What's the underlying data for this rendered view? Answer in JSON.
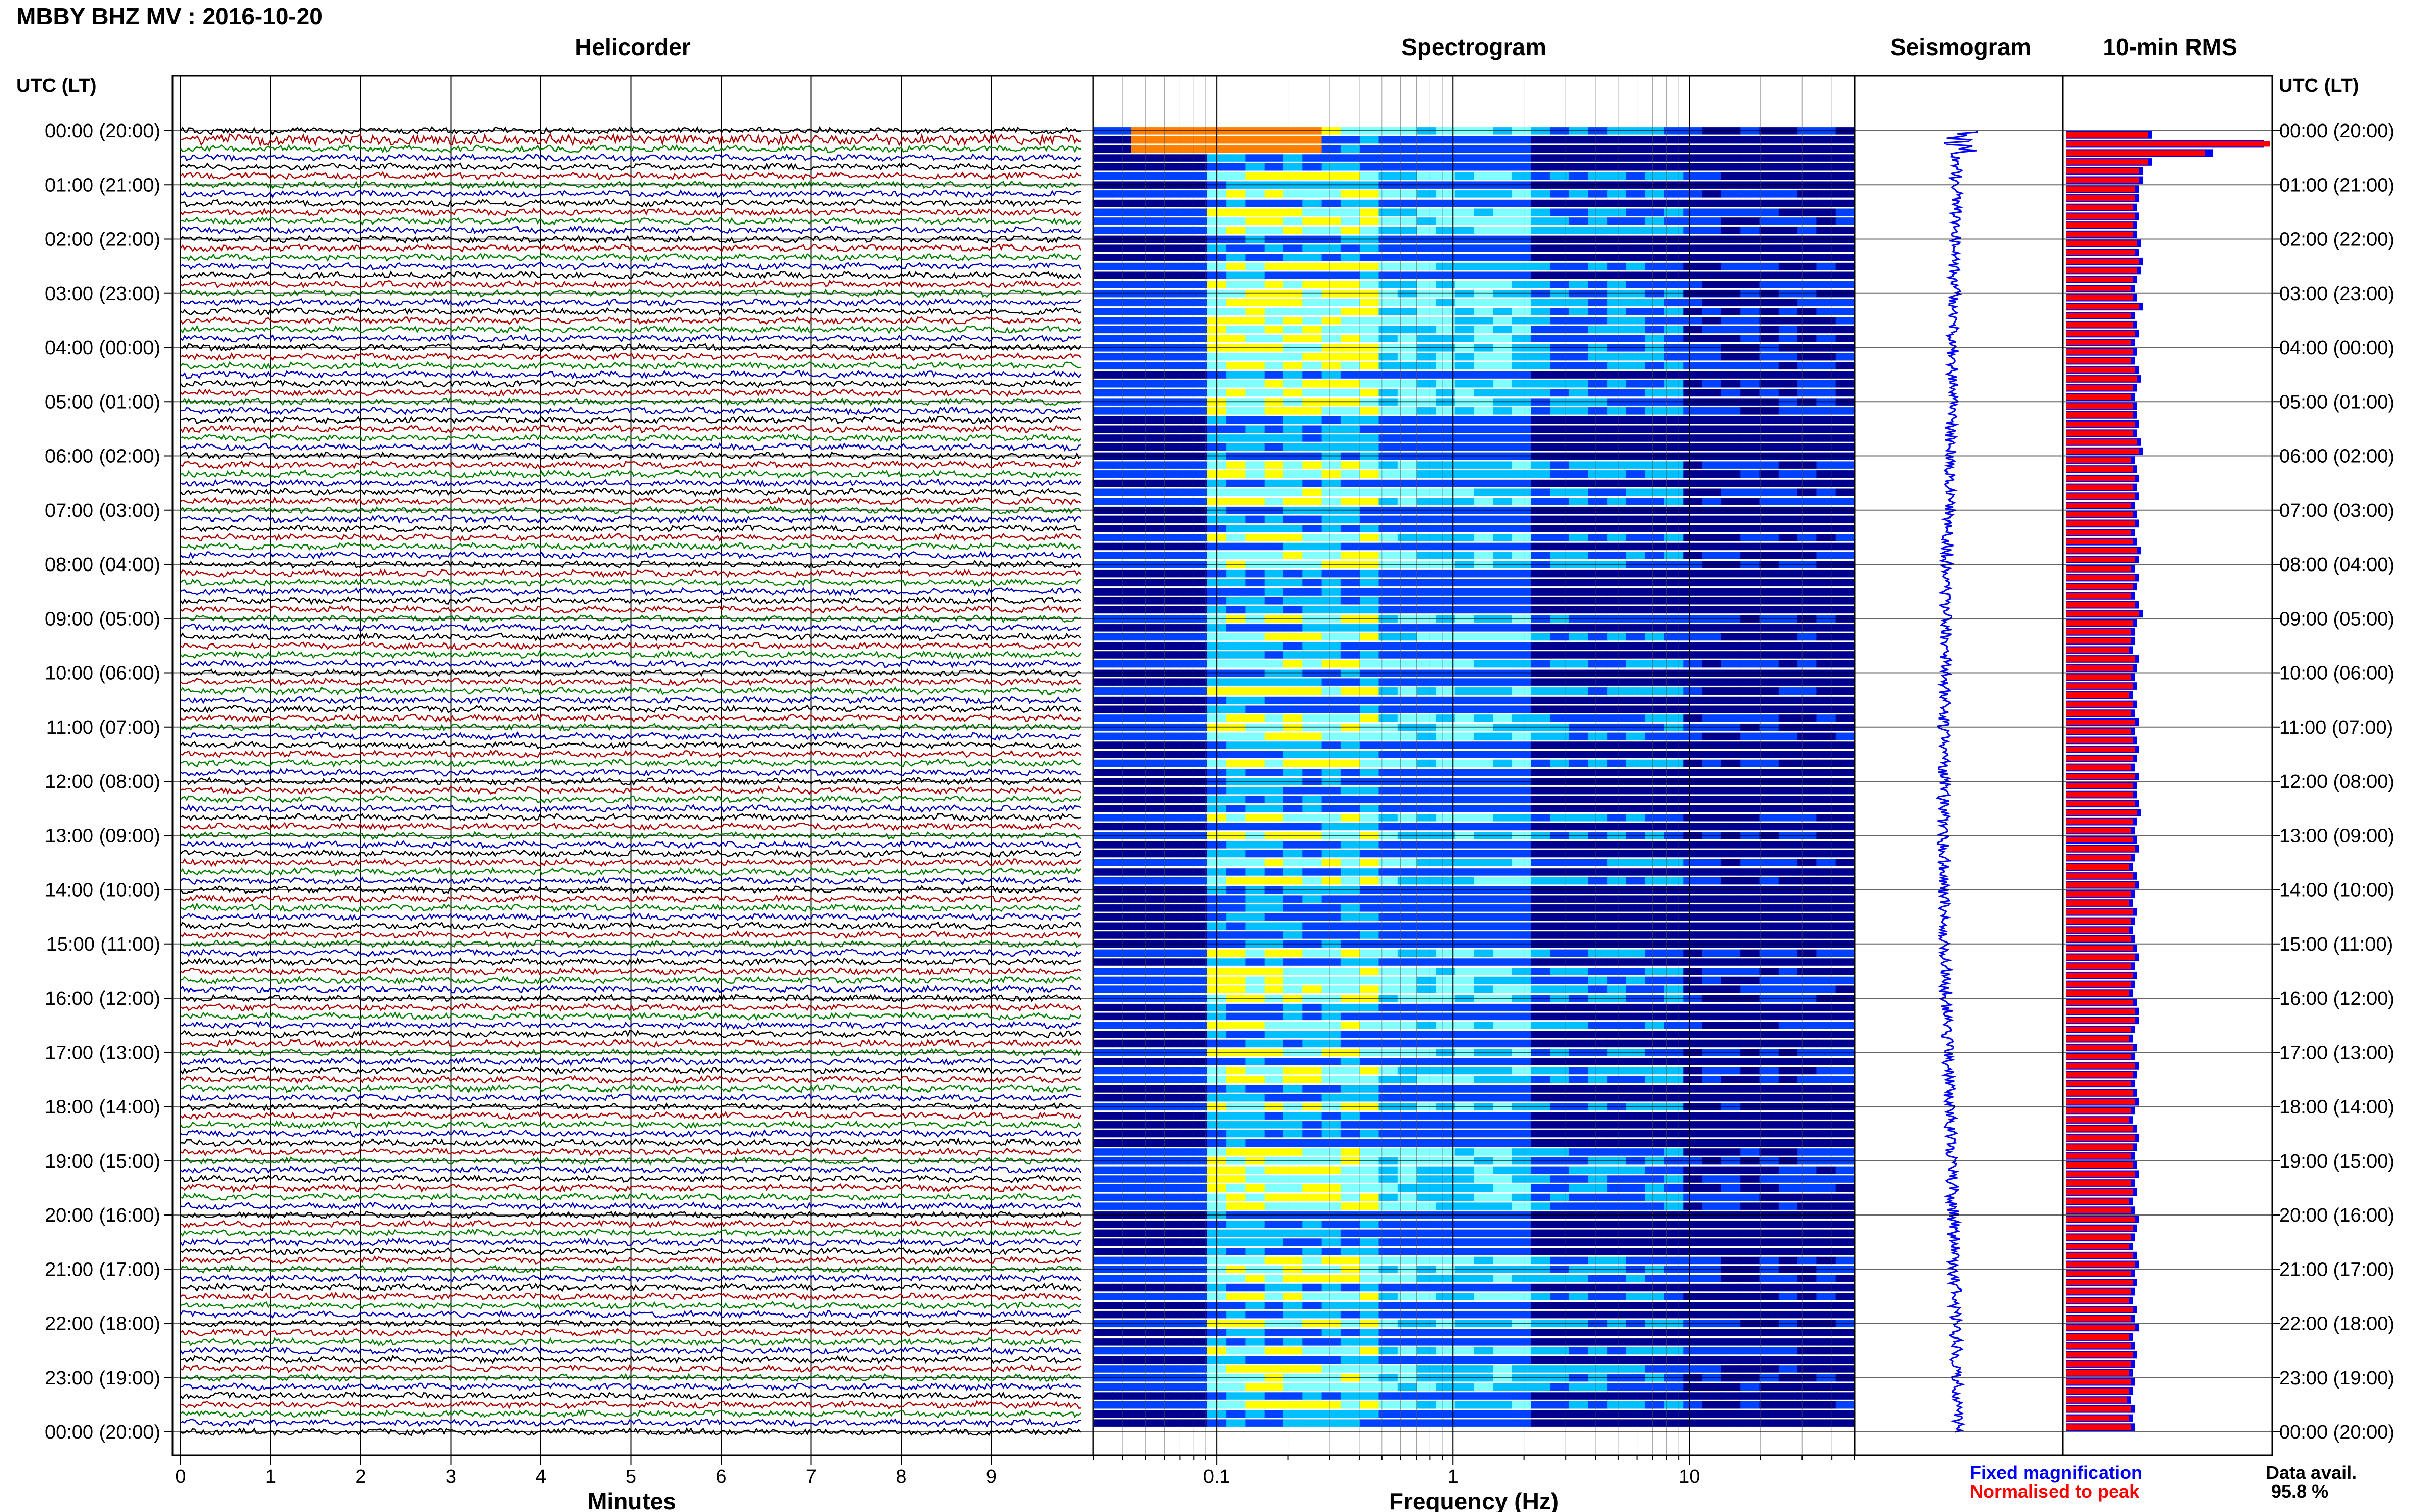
{
  "header": {
    "station_title": "MBBY BHZ MV : 2016-10-20",
    "utc_label_left": "UTC (LT)",
    "utc_label_right": "UTC (LT)"
  },
  "panels": {
    "helicorder": "Helicorder",
    "spectrogram": "Spectrogram",
    "seismogram": "Seismogram",
    "rms": "10-min RMS"
  },
  "time_labels": [
    "00:00 (20:00)",
    "01:00 (21:00)",
    "02:00 (22:00)",
    "03:00 (23:00)",
    "04:00 (00:00)",
    "05:00 (01:00)",
    "06:00 (02:00)",
    "07:00 (03:00)",
    "08:00 (04:00)",
    "09:00 (05:00)",
    "10:00 (06:00)",
    "11:00 (07:00)",
    "12:00 (08:00)",
    "13:00 (09:00)",
    "14:00 (10:00)",
    "15:00 (11:00)",
    "16:00 (12:00)",
    "17:00 (13:00)",
    "18:00 (14:00)",
    "19:00 (15:00)",
    "20:00 (16:00)",
    "21:00 (17:00)",
    "22:00 (18:00)",
    "23:00 (19:00)",
    "00:00 (20:00)"
  ],
  "footer": {
    "legend_fixed": "Fixed magnification",
    "legend_normalised": "Normalised to peak",
    "data_avail_label": "Data avail.",
    "data_avail_value": "95.8 %"
  },
  "colors": {
    "trace_colors": [
      "#000000",
      "#b00000",
      "#008000",
      "#0000c0"
    ],
    "fixed_magnification": "#0000ff",
    "normalised_to_peak": "#ff0000",
    "grid": "#000000"
  },
  "chart_data": {
    "type": "heatmap",
    "helicorder": {
      "xlabel": "Minutes",
      "x_ticks": [
        "0",
        "1",
        "2",
        "3",
        "4",
        "5",
        "6",
        "7",
        "8",
        "9"
      ],
      "xlim": [
        0,
        10
      ],
      "lines_per_hour": 6,
      "hours": 24
    },
    "spectrogram": {
      "xlabel": "Frequency (Hz)",
      "x_ticks": [
        "0.1",
        "1",
        "10"
      ],
      "x_scale": "log",
      "xlim": [
        0.03,
        50
      ],
      "colormap": [
        "#00008f",
        "#0040ff",
        "#00c0ff",
        "#80ffff",
        "#ffff00",
        "#ff8000"
      ]
    },
    "rms": {
      "interval_minutes": 10,
      "fixed_magnification": [
        0.42,
        0.97,
        0.72,
        0.42,
        0.38,
        0.38,
        0.36,
        0.36,
        0.35,
        0.36,
        0.35,
        0.35,
        0.37,
        0.36,
        0.38,
        0.37,
        0.35,
        0.34,
        0.35,
        0.38,
        0.34,
        0.35,
        0.36,
        0.34,
        0.35,
        0.34,
        0.36,
        0.37,
        0.35,
        0.34,
        0.35,
        0.35,
        0.36,
        0.35,
        0.37,
        0.38,
        0.34,
        0.35,
        0.36,
        0.35,
        0.36,
        0.34,
        0.35,
        0.36,
        0.34,
        0.35,
        0.37,
        0.36,
        0.34,
        0.36,
        0.35,
        0.34,
        0.36,
        0.38,
        0.35,
        0.34,
        0.34,
        0.33,
        0.36,
        0.35,
        0.34,
        0.35,
        0.33,
        0.35,
        0.34,
        0.36,
        0.34,
        0.35,
        0.36,
        0.35,
        0.34,
        0.36,
        0.35,
        0.35,
        0.36,
        0.37,
        0.35,
        0.34,
        0.35,
        0.36,
        0.34,
        0.33,
        0.35,
        0.36,
        0.34,
        0.33,
        0.35,
        0.34,
        0.33,
        0.34,
        0.35,
        0.36,
        0.34,
        0.35,
        0.34,
        0.33,
        0.35,
        0.36,
        0.36,
        0.34,
        0.33,
        0.35,
        0.34,
        0.36,
        0.35,
        0.34,
        0.35,
        0.36,
        0.34,
        0.33,
        0.35,
        0.36,
        0.35,
        0.34,
        0.35,
        0.36,
        0.34,
        0.35,
        0.33,
        0.34,
        0.36,
        0.35,
        0.34,
        0.33,
        0.35,
        0.36,
        0.34,
        0.35,
        0.34,
        0.33,
        0.35,
        0.34,
        0.36,
        0.33,
        0.34,
        0.35,
        0.34,
        0.33,
        0.34,
        0.33,
        0.32,
        0.34,
        0.33,
        0.34
      ],
      "normalised_to_peak": [
        0.4,
        1.0,
        0.68,
        0.4,
        0.36,
        0.36,
        0.34,
        0.34,
        0.33,
        0.34,
        0.33,
        0.33,
        0.35,
        0.34,
        0.36,
        0.35,
        0.33,
        0.32,
        0.33,
        0.36,
        0.32,
        0.33,
        0.34,
        0.32,
        0.33,
        0.32,
        0.34,
        0.35,
        0.33,
        0.32,
        0.33,
        0.33,
        0.34,
        0.33,
        0.35,
        0.36,
        0.32,
        0.33,
        0.34,
        0.33,
        0.34,
        0.32,
        0.33,
        0.34,
        0.32,
        0.33,
        0.35,
        0.34,
        0.32,
        0.34,
        0.33,
        0.32,
        0.34,
        0.36,
        0.33,
        0.32,
        0.32,
        0.31,
        0.34,
        0.33,
        0.32,
        0.33,
        0.31,
        0.33,
        0.32,
        0.34,
        0.32,
        0.33,
        0.34,
        0.33,
        0.32,
        0.34,
        0.33,
        0.33,
        0.34,
        0.35,
        0.33,
        0.32,
        0.33,
        0.34,
        0.32,
        0.31,
        0.33,
        0.34,
        0.32,
        0.31,
        0.33,
        0.32,
        0.31,
        0.32,
        0.33,
        0.34,
        0.32,
        0.33,
        0.32,
        0.31,
        0.33,
        0.34,
        0.34,
        0.32,
        0.31,
        0.33,
        0.32,
        0.34,
        0.33,
        0.32,
        0.33,
        0.34,
        0.32,
        0.31,
        0.33,
        0.34,
        0.33,
        0.32,
        0.33,
        0.34,
        0.32,
        0.33,
        0.31,
        0.32,
        0.34,
        0.33,
        0.32,
        0.31,
        0.33,
        0.34,
        0.32,
        0.33,
        0.32,
        0.31,
        0.33,
        0.32,
        0.34,
        0.31,
        0.32,
        0.33,
        0.32,
        0.31,
        0.32,
        0.31,
        0.3,
        0.32,
        0.31,
        0.32
      ]
    }
  }
}
